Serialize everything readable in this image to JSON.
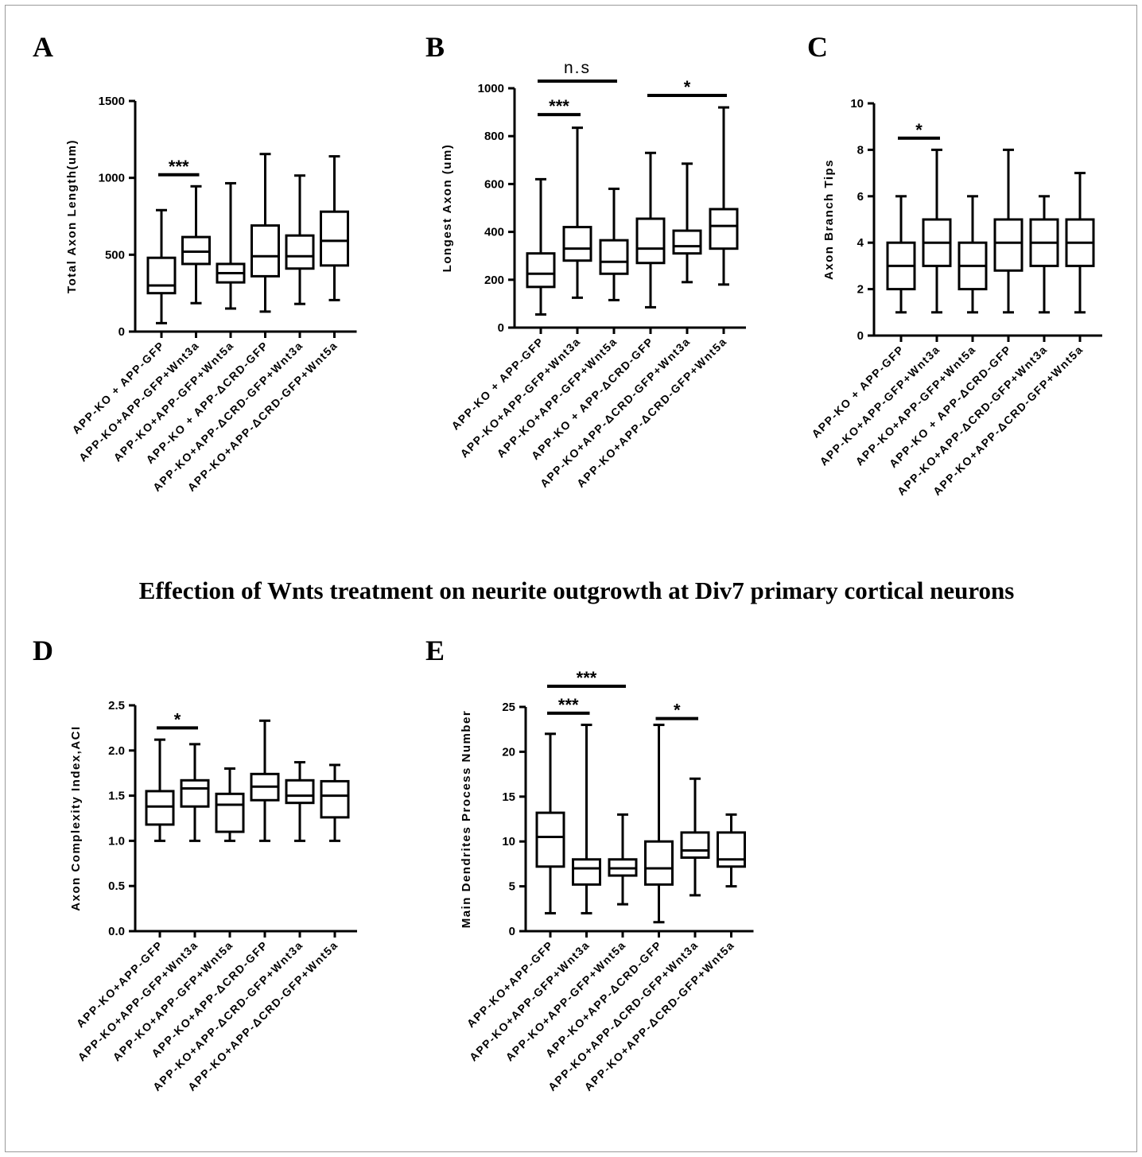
{
  "figure": {
    "main_title": "Effection of Wnts treatment on neurite outgrowth at Div7 primary cortical neurons"
  },
  "chart_data": [
    {
      "panel": "A",
      "type": "box",
      "ylabel": "Total Axon Length(um)",
      "ylim": [
        0,
        1500
      ],
      "yticks": [
        0,
        500,
        1000,
        1500
      ],
      "categories": [
        "APP-KO + APP-GFP",
        "APP-KO+APP-GFP+Wnt3a",
        "APP-KO+APP-GFP+Wnt5a",
        "APP-KO + APP-ΔCRD-GFP",
        "APP-KO+APP-ΔCRD-GFP+Wnt3a",
        "APP-KO+APP-ΔCRD-GFP+Wnt5a"
      ],
      "boxes": [
        {
          "min": 55,
          "q1": 250,
          "median": 300,
          "q3": 480,
          "max": 790
        },
        {
          "min": 185,
          "q1": 440,
          "median": 520,
          "q3": 615,
          "max": 945
        },
        {
          "min": 150,
          "q1": 320,
          "median": 380,
          "q3": 440,
          "max": 965
        },
        {
          "min": 130,
          "q1": 360,
          "median": 490,
          "q3": 690,
          "max": 1155
        },
        {
          "min": 180,
          "q1": 410,
          "median": 490,
          "q3": 625,
          "max": 1015
        },
        {
          "min": 205,
          "q1": 430,
          "median": 590,
          "q3": 780,
          "max": 1140
        }
      ],
      "significance": [
        {
          "from": 0,
          "to": 1,
          "y": 1020,
          "label": "***"
        }
      ]
    },
    {
      "panel": "B",
      "type": "box",
      "ylabel": "Longest Axon (um)",
      "ylim": [
        0,
        1000
      ],
      "yticks": [
        0,
        200,
        400,
        600,
        800,
        1000
      ],
      "categories": [
        "APP-KO + APP-GFP",
        "APP-KO+APP-GFP+Wnt3a",
        "APP-KO+APP-GFP+Wnt5a",
        "APP-KO + APP-ΔCRD-GFP",
        "APP-KO+APP-ΔCRD-GFP+Wnt3a",
        "APP-KO+APP-ΔCRD-GFP+Wnt5a"
      ],
      "boxes": [
        {
          "min": 55,
          "q1": 170,
          "median": 225,
          "q3": 310,
          "max": 620
        },
        {
          "min": 125,
          "q1": 280,
          "median": 330,
          "q3": 420,
          "max": 835
        },
        {
          "min": 115,
          "q1": 225,
          "median": 275,
          "q3": 365,
          "max": 580
        },
        {
          "min": 85,
          "q1": 270,
          "median": 330,
          "q3": 455,
          "max": 730
        },
        {
          "min": 190,
          "q1": 310,
          "median": 340,
          "q3": 405,
          "max": 685
        },
        {
          "min": 180,
          "q1": 330,
          "median": 425,
          "q3": 495,
          "max": 920
        }
      ],
      "significance": [
        {
          "from": 0,
          "to": 1,
          "y": 890,
          "label": "***"
        },
        {
          "from": 0,
          "to": 2,
          "y": 1030,
          "label": "n.s"
        },
        {
          "from": 3,
          "to": 5,
          "y": 970,
          "label": "*"
        }
      ]
    },
    {
      "panel": "C",
      "type": "box",
      "ylabel": "Axon Branch Tips",
      "ylim": [
        0,
        10
      ],
      "yticks": [
        0,
        2,
        4,
        6,
        8,
        10
      ],
      "categories": [
        "APP-KO + APP-GFP",
        "APP-KO+APP-GFP+Wnt3a",
        "APP-KO+APP-GFP+Wnt5a",
        "APP-KO + APP-ΔCRD-GFP",
        "APP-KO+APP-ΔCRD-GFP+Wnt3a",
        "APP-KO+APP-ΔCRD-GFP+Wnt5a"
      ],
      "boxes": [
        {
          "min": 1,
          "q1": 2,
          "median": 3,
          "q3": 4,
          "max": 6
        },
        {
          "min": 1,
          "q1": 3,
          "median": 4,
          "q3": 5,
          "max": 8
        },
        {
          "min": 1,
          "q1": 2,
          "median": 3,
          "q3": 4,
          "max": 6
        },
        {
          "min": 1,
          "q1": 2.8,
          "median": 4,
          "q3": 5,
          "max": 8
        },
        {
          "min": 1,
          "q1": 3,
          "median": 4,
          "q3": 5,
          "max": 6
        },
        {
          "min": 1,
          "q1": 3,
          "median": 4,
          "q3": 5,
          "max": 7
        }
      ],
      "significance": [
        {
          "from": 0,
          "to": 1,
          "y": 8.5,
          "label": "*"
        }
      ]
    },
    {
      "panel": "D",
      "type": "box",
      "ylabel": "Axon Complexity Index,ACI",
      "ylim": [
        0,
        2.5
      ],
      "yticks": [
        "0.0",
        "0.5",
        "1.0",
        "1.5",
        "2.0",
        "2.5"
      ],
      "categories": [
        "APP-KO+APP-GFP",
        "APP-KO+APP-GFP+Wnt3a",
        "APP-KO+APP-GFP+Wnt5a",
        "APP-KO+APP-ΔCRD-GFP",
        "APP-KO+APP-ΔCRD-GFP+Wnt3a",
        "APP-KO+APP-ΔCRD-GFP+Wnt5a"
      ],
      "boxes": [
        {
          "min": 1.0,
          "q1": 1.18,
          "median": 1.38,
          "q3": 1.55,
          "max": 2.12
        },
        {
          "min": 1.0,
          "q1": 1.38,
          "median": 1.58,
          "q3": 1.67,
          "max": 2.07
        },
        {
          "min": 1.0,
          "q1": 1.1,
          "median": 1.4,
          "q3": 1.52,
          "max": 1.8
        },
        {
          "min": 1.0,
          "q1": 1.45,
          "median": 1.6,
          "q3": 1.74,
          "max": 2.33
        },
        {
          "min": 1.0,
          "q1": 1.42,
          "median": 1.5,
          "q3": 1.67,
          "max": 1.87
        },
        {
          "min": 1.0,
          "q1": 1.26,
          "median": 1.5,
          "q3": 1.66,
          "max": 1.84
        }
      ],
      "significance": [
        {
          "from": 0,
          "to": 1,
          "y": 2.25,
          "label": "*"
        }
      ]
    },
    {
      "panel": "E",
      "type": "box",
      "ylabel": "Main Dendrites Process Number",
      "ylim": [
        0,
        25
      ],
      "yticks": [
        0,
        5,
        10,
        15,
        20,
        25
      ],
      "categories": [
        "APP-KO+APP-GFP",
        "APP-KO+APP-GFP+Wnt3a",
        "APP-KO+APP-GFP+Wnt5a",
        "APP-KO+APP-ΔCRD-GFP",
        "APP-KO+APP-ΔCRD-GFP+Wnt3a",
        "APP-KO+APP-ΔCRD-GFP+Wnt5a"
      ],
      "boxes": [
        {
          "min": 2,
          "q1": 7.2,
          "median": 10.5,
          "q3": 13.2,
          "max": 22
        },
        {
          "min": 2,
          "q1": 5.2,
          "median": 7,
          "q3": 8,
          "max": 23
        },
        {
          "min": 3,
          "q1": 6.2,
          "median": 7,
          "q3": 8,
          "max": 13
        },
        {
          "min": 1,
          "q1": 5.2,
          "median": 7,
          "q3": 10,
          "max": 23
        },
        {
          "min": 4,
          "q1": 8.2,
          "median": 9,
          "q3": 11,
          "max": 17
        },
        {
          "min": 5,
          "q1": 7.2,
          "median": 8,
          "q3": 11,
          "max": 13
        }
      ],
      "significance": [
        {
          "from": 0,
          "to": 1,
          "y": 24.3,
          "label": "***"
        },
        {
          "from": 0,
          "to": 2,
          "y": 27.3,
          "label": "***"
        },
        {
          "from": 3,
          "to": 4,
          "y": 23.7,
          "label": "*"
        }
      ]
    }
  ]
}
